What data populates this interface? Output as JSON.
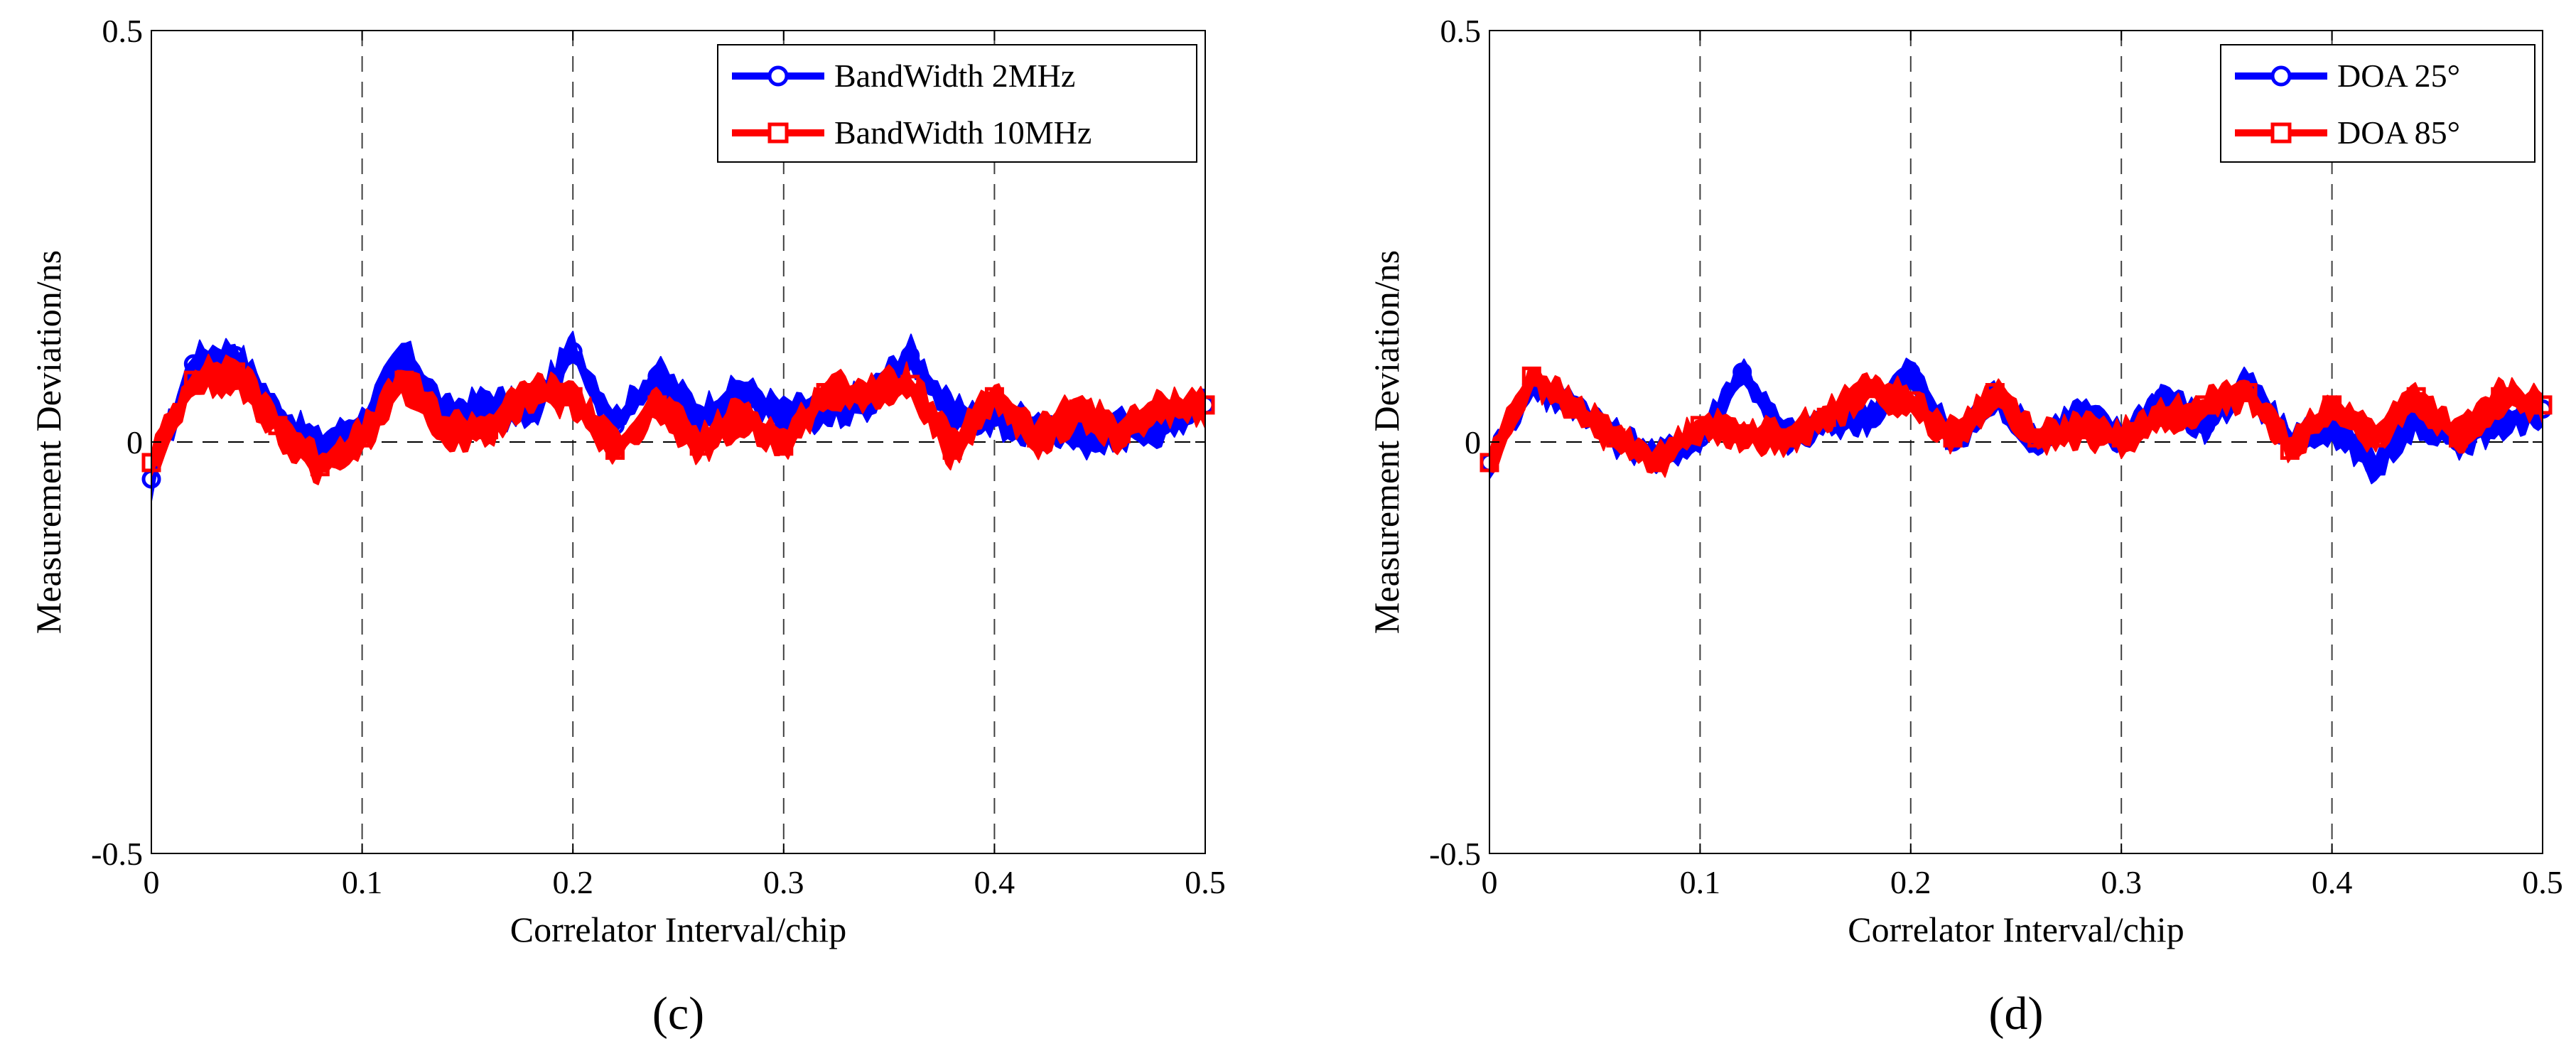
{
  "colors": {
    "series1": "#0000FF",
    "series2": "#FF0000",
    "axis": "#000000",
    "grid": "#000000"
  },
  "chart_data": [
    {
      "type": "line",
      "caption": "(c)",
      "title": "",
      "xlabel": "Correlator Interval/chip",
      "ylabel": "Measurement Deviation/ns",
      "xlim": [
        0,
        0.5
      ],
      "ylim": [
        -0.5,
        0.5
      ],
      "xticks": [
        0,
        0.1,
        0.2,
        0.3,
        0.4,
        0.5
      ],
      "xtick_labels": [
        "0",
        "0.1",
        "0.2",
        "0.3",
        "0.4",
        "0.5"
      ],
      "yticks": [
        -0.5,
        0,
        0.5
      ],
      "ytick_labels": [
        "-0.5",
        "0",
        "0.5"
      ],
      "grid": "vertical dashed",
      "legend_position": "top-right",
      "band_halfwidth": 0.018,
      "series": [
        {
          "name": "BandWidth 2MHz",
          "marker": "circle",
          "x": [
            0,
            0.02,
            0.04,
            0.06,
            0.08,
            0.1,
            0.12,
            0.14,
            0.16,
            0.18,
            0.2,
            0.22,
            0.24,
            0.26,
            0.28,
            0.3,
            0.32,
            0.34,
            0.36,
            0.38,
            0.4,
            0.42,
            0.44,
            0.46,
            0.48,
            0.5
          ],
          "y": [
            -0.045,
            0.095,
            0.105,
            0.03,
            -0.008,
            0.02,
            0.105,
            0.03,
            0.045,
            0.035,
            0.11,
            0.02,
            0.08,
            0.03,
            0.06,
            0.03,
            0.04,
            0.05,
            0.105,
            0.03,
            0.03,
            0.02,
            0.005,
            0.015,
            0.02,
            0.045
          ]
        },
        {
          "name": "BandWidth 10MHz",
          "marker": "square",
          "x": [
            0,
            0.02,
            0.04,
            0.06,
            0.08,
            0.1,
            0.12,
            0.14,
            0.16,
            0.18,
            0.2,
            0.22,
            0.24,
            0.26,
            0.28,
            0.3,
            0.32,
            0.34,
            0.36,
            0.38,
            0.4,
            0.42,
            0.44,
            0.46,
            0.48,
            0.5
          ],
          "y": [
            -0.025,
            0.075,
            0.085,
            0.02,
            -0.03,
            0.005,
            0.075,
            0.015,
            0.015,
            0.06,
            0.055,
            -0.01,
            0.045,
            -0.005,
            0.035,
            -0.005,
            0.06,
            0.06,
            0.07,
            -0.01,
            0.055,
            0.005,
            0.04,
            0.01,
            0.04,
            0.045
          ]
        }
      ]
    },
    {
      "type": "line",
      "caption": "(d)",
      "title": "",
      "xlabel": "Correlator Interval/chip",
      "ylabel": "Measurement Deviation/ns",
      "xlim": [
        0,
        0.5
      ],
      "ylim": [
        -0.5,
        0.5
      ],
      "xticks": [
        0,
        0.1,
        0.2,
        0.3,
        0.4,
        0.5
      ],
      "xtick_labels": [
        "0",
        "0.1",
        "0.2",
        "0.3",
        "0.4",
        "0.5"
      ],
      "yticks": [
        -0.5,
        0,
        0.5
      ],
      "ytick_labels": [
        "-0.5",
        "0",
        "0.5"
      ],
      "grid": "vertical dashed",
      "legend_position": "top-right",
      "band_halfwidth": 0.016,
      "series": [
        {
          "name": "DOA 25°",
          "marker": "circle",
          "x": [
            0,
            0.02,
            0.04,
            0.06,
            0.08,
            0.1,
            0.12,
            0.14,
            0.16,
            0.18,
            0.2,
            0.22,
            0.24,
            0.26,
            0.28,
            0.3,
            0.32,
            0.34,
            0.36,
            0.38,
            0.4,
            0.42,
            0.44,
            0.46,
            0.48,
            0.5
          ],
          "y": [
            -0.025,
            0.07,
            0.045,
            0.005,
            -0.02,
            0.005,
            0.085,
            0.005,
            0.025,
            0.03,
            0.085,
            0.0,
            0.055,
            0.0,
            0.035,
            0.005,
            0.055,
            0.02,
            0.07,
            0.0,
            0.02,
            -0.03,
            0.03,
            0.0,
            0.025,
            0.04
          ]
        },
        {
          "name": "DOA 85°",
          "marker": "square",
          "x": [
            0,
            0.02,
            0.04,
            0.06,
            0.08,
            0.1,
            0.12,
            0.14,
            0.16,
            0.18,
            0.2,
            0.22,
            0.24,
            0.26,
            0.28,
            0.3,
            0.32,
            0.34,
            0.36,
            0.38,
            0.4,
            0.42,
            0.44,
            0.46,
            0.48,
            0.5
          ],
          "y": [
            -0.025,
            0.08,
            0.04,
            0.005,
            -0.025,
            0.02,
            0.01,
            0.005,
            0.03,
            0.065,
            0.05,
            0.005,
            0.06,
            0.005,
            0.015,
            0.005,
            0.03,
            0.045,
            0.06,
            -0.01,
            0.045,
            0.005,
            0.055,
            0.005,
            0.055,
            0.045
          ]
        }
      ]
    }
  ]
}
